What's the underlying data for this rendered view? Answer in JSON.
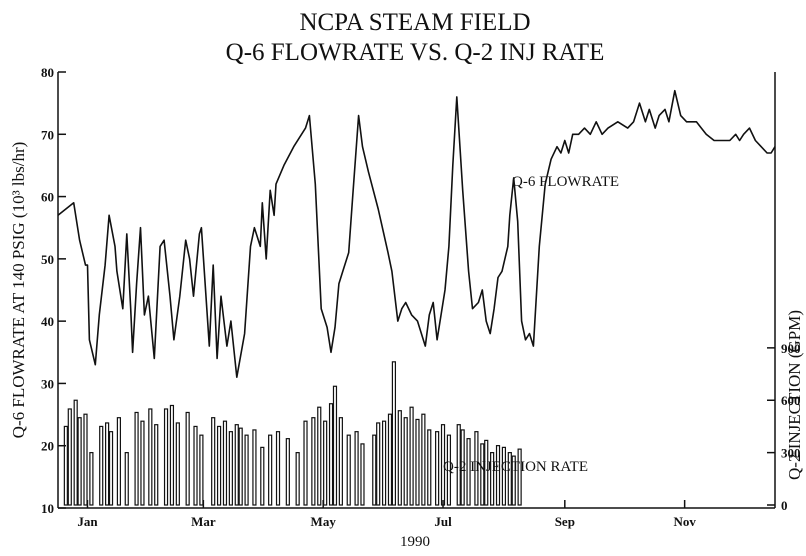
{
  "chart_data": {
    "type": "line",
    "title": "NCPA STEAM FIELD",
    "subtitle": "Q-6 FLOWRATE VS. Q-2 INJ RATE",
    "y_label": "Q-6 FLOWRATE AT 140 PSIG  (10³ lbs/hr)",
    "y2_label": "Q-2 INJECTION (GPM)",
    "x_label": "1990",
    "xlim": [
      0,
      365
    ],
    "xticks": [
      {
        "value": 15,
        "label": "Jan"
      },
      {
        "value": 74,
        "label": "Mar"
      },
      {
        "value": 135,
        "label": "May"
      },
      {
        "value": 196,
        "label": "Jul"
      },
      {
        "value": 258,
        "label": "Sep"
      },
      {
        "value": 319,
        "label": "Nov"
      }
    ],
    "ylim": [
      10,
      80
    ],
    "yticks": [
      10,
      20,
      30,
      40,
      50,
      60,
      70,
      80
    ],
    "y2lim": [
      0,
      2480
    ],
    "y2ticks": [
      0,
      300,
      600,
      900
    ],
    "annotations": [
      "Q-6 FLOWRATE",
      "Q-2 INJECTION RATE"
    ],
    "series": [
      {
        "name": "Q-6 FLOWRATE",
        "type": "line",
        "axis": "y",
        "color": "#111111",
        "x": [
          0,
          8,
          11,
          14,
          15,
          16,
          19,
          21,
          24,
          26,
          29,
          30,
          33,
          35,
          37,
          38,
          40,
          42,
          44,
          46,
          49,
          52,
          54,
          57,
          59,
          62,
          65,
          67,
          69,
          72,
          73,
          77,
          79,
          81,
          83,
          86,
          88,
          91,
          95,
          98,
          100,
          103,
          104,
          106,
          108,
          110,
          111,
          115,
          120,
          126,
          128,
          131,
          134,
          137,
          139,
          141,
          143,
          145,
          148,
          150,
          153,
          155,
          158,
          163,
          168,
          170,
          173,
          175,
          177,
          180,
          183,
          187,
          189,
          191,
          193,
          197,
          199,
          201,
          203,
          206,
          209,
          211,
          214,
          216,
          218,
          220,
          222,
          224,
          226,
          229,
          230,
          232,
          234,
          236,
          238,
          240,
          242,
          245,
          248,
          251,
          254,
          256,
          258,
          260,
          262,
          265,
          268,
          271,
          274,
          277,
          280,
          285,
          290,
          293,
          296,
          299,
          301,
          304,
          306,
          309,
          311,
          314,
          317,
          320,
          325,
          330,
          334,
          337,
          342,
          345,
          347,
          349,
          352,
          355,
          358,
          361,
          363,
          365
        ],
        "values": [
          57,
          59,
          53,
          49,
          49,
          37,
          33,
          41,
          49,
          57,
          52,
          48,
          42,
          54,
          42,
          35,
          46,
          55,
          41,
          44,
          34,
          52,
          53,
          44,
          37,
          44,
          53,
          50,
          44,
          54,
          55,
          36,
          49,
          34,
          44,
          36,
          40,
          31,
          38,
          52,
          55,
          52,
          59,
          50,
          61,
          57,
          62,
          65,
          68,
          71,
          73,
          62,
          42,
          39,
          35,
          39,
          46,
          48,
          51,
          60,
          73,
          68,
          64,
          58,
          51,
          48,
          40,
          42,
          43,
          41,
          40,
          36,
          41,
          43,
          37,
          45,
          52,
          65,
          76,
          61,
          48,
          42,
          43,
          45,
          40,
          38,
          42,
          47,
          48,
          52,
          57,
          63,
          56,
          40,
          37,
          38,
          36,
          52,
          62,
          66,
          68,
          67,
          69,
          67,
          70,
          70,
          71,
          70,
          72,
          70,
          71,
          72,
          71,
          72,
          75,
          72,
          74,
          71,
          73,
          74,
          72,
          77,
          73,
          72,
          72,
          70,
          69,
          69,
          69,
          70,
          69,
          70,
          71,
          69,
          68,
          67,
          67,
          68
        ]
      },
      {
        "name": "Q-2 INJECTION RATE",
        "type": "bar",
        "axis": "y2",
        "color": "#111111",
        "x": [
          4,
          6,
          9,
          11,
          14,
          17,
          22,
          25,
          27,
          31,
          35,
          40,
          43,
          47,
          50,
          55,
          58,
          61,
          66,
          70,
          73,
          79,
          82,
          85,
          88,
          91,
          93,
          96,
          100,
          104,
          108,
          112,
          117,
          122,
          126,
          130,
          133,
          136,
          139,
          141,
          144,
          148,
          152,
          155,
          161,
          163,
          166,
          169,
          171,
          174,
          177,
          180,
          183,
          186,
          189,
          193,
          196,
          199,
          204,
          206,
          209,
          213,
          216,
          218,
          221,
          224,
          227,
          230,
          232,
          235
        ],
        "values": [
          450,
          550,
          600,
          500,
          520,
          300,
          450,
          470,
          420,
          500,
          300,
          530,
          480,
          550,
          460,
          550,
          570,
          470,
          530,
          450,
          400,
          500,
          450,
          480,
          420,
          460,
          440,
          400,
          430,
          330,
          400,
          420,
          380,
          300,
          480,
          500,
          560,
          480,
          580,
          680,
          500,
          400,
          420,
          350,
          400,
          470,
          480,
          520,
          820,
          540,
          500,
          560,
          490,
          520,
          430,
          420,
          460,
          400,
          460,
          430,
          380,
          420,
          350,
          370,
          300,
          340,
          330,
          300,
          280,
          320
        ]
      }
    ]
  }
}
